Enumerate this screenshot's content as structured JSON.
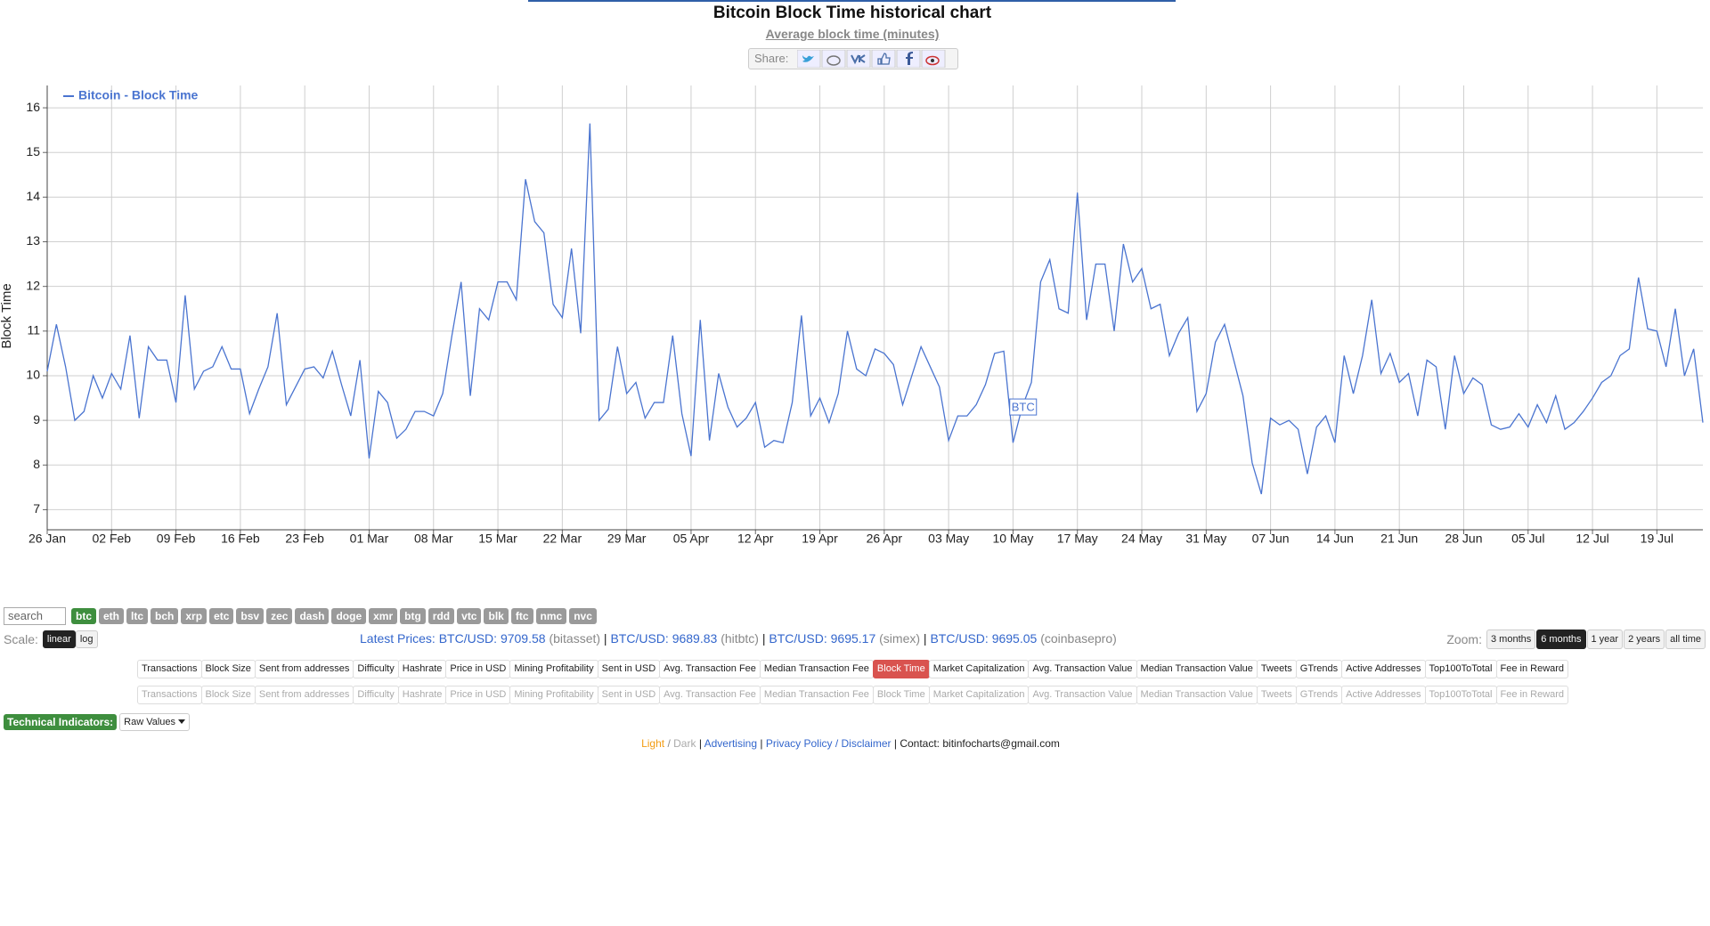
{
  "page": {
    "title": "Bitcoin Block Time historical chart",
    "subtitle": "Average block time (minutes)",
    "share_label": "Share:",
    "search_placeholder": "search",
    "coins": [
      "btc",
      "eth",
      "ltc",
      "bch",
      "xrp",
      "etc",
      "bsv",
      "zec",
      "dash",
      "doge",
      "xmr",
      "btg",
      "rdd",
      "vtc",
      "blk",
      "ftc",
      "nmc",
      "nvc"
    ],
    "scale_label": "Scale:",
    "scales": [
      "linear",
      "log"
    ],
    "latest_prices_label": "Latest Prices:",
    "separator": "|",
    "prices": [
      {
        "pair": "BTC/USD:",
        "price": "9709.58",
        "source": "(bitasset)"
      },
      {
        "pair": "BTC/USD:",
        "price": "9689.83",
        "source": "(hitbtc)"
      },
      {
        "pair": "BTC/USD:",
        "price": "9695.17",
        "source": "(simex)"
      },
      {
        "pair": "BTC/USD:",
        "price": "9695.05",
        "source": "(coinbasepro)"
      }
    ],
    "zoom_label": "Zoom:",
    "zooms": [
      "3 months",
      "6 months",
      "1 year",
      "2 years",
      "all time"
    ],
    "metrics": [
      "Transactions",
      "Block Size",
      "Sent from addresses",
      "Difficulty",
      "Hashrate",
      "Price in USD",
      "Mining Profitability",
      "Sent in USD",
      "Avg. Transaction Fee",
      "Median Transaction Fee",
      "Block Time",
      "Market Capitalization",
      "Avg. Transaction Value",
      "Median Transaction Value",
      "Tweets",
      "GTrends",
      "Active Addresses",
      "Top100ToTotal",
      "Fee in Reward"
    ],
    "selected": {
      "coin": "btc",
      "scale": "linear",
      "zoom": "6 months",
      "metric": "Block Time"
    },
    "technical_indicators_label": "Technical Indicators:",
    "raw_values": "Raw Values",
    "footer": {
      "light": "Light",
      "slash": "/",
      "dark": "Dark",
      "advertising": "Advertising",
      "privacy": "Privacy Policy / Disclaimer",
      "contact": "Contact: bitinfocharts@gmail.com"
    }
  },
  "chart_data": {
    "type": "line",
    "y_label": "Block Time",
    "x": [
      "26 Jan",
      "27 Jan",
      "28 Jan",
      "29 Jan",
      "30 Jan",
      "31 Jan",
      "01 Feb",
      "02 Feb",
      "03 Feb",
      "04 Feb",
      "05 Feb",
      "06 Feb",
      "07 Feb",
      "08 Feb",
      "09 Feb",
      "10 Feb",
      "11 Feb",
      "12 Feb",
      "13 Feb",
      "14 Feb",
      "15 Feb",
      "16 Feb",
      "17 Feb",
      "18 Feb",
      "19 Feb",
      "20 Feb",
      "21 Feb",
      "22 Feb",
      "23 Feb",
      "24 Feb",
      "25 Feb",
      "26 Feb",
      "27 Feb",
      "28 Feb",
      "29 Feb",
      "01 Mar",
      "02 Mar",
      "03 Mar",
      "04 Mar",
      "05 Mar",
      "06 Mar",
      "07 Mar",
      "08 Mar",
      "09 Mar",
      "10 Mar",
      "11 Mar",
      "12 Mar",
      "13 Mar",
      "14 Mar",
      "15 Mar",
      "16 Mar",
      "17 Mar",
      "18 Mar",
      "19 Mar",
      "20 Mar",
      "21 Mar",
      "22 Mar",
      "23 Mar",
      "24 Mar",
      "25 Mar",
      "26 Mar",
      "27 Mar",
      "28 Mar",
      "29 Mar",
      "30 Mar",
      "31 Mar",
      "01 Apr",
      "02 Apr",
      "03 Apr",
      "04 Apr",
      "05 Apr",
      "06 Apr",
      "07 Apr",
      "08 Apr",
      "09 Apr",
      "10 Apr",
      "11 Apr",
      "12 Apr",
      "13 Apr",
      "14 Apr",
      "15 Apr",
      "16 Apr",
      "17 Apr",
      "18 Apr",
      "19 Apr",
      "20 Apr",
      "21 Apr",
      "22 Apr",
      "23 Apr",
      "24 Apr",
      "25 Apr",
      "26 Apr",
      "27 Apr",
      "28 Apr",
      "29 Apr",
      "30 Apr",
      "01 May",
      "02 May",
      "03 May",
      "04 May",
      "05 May",
      "06 May",
      "07 May",
      "08 May",
      "09 May",
      "10 May",
      "11 May",
      "12 May",
      "13 May",
      "14 May",
      "15 May",
      "16 May",
      "17 May",
      "18 May",
      "19 May",
      "20 May",
      "21 May",
      "22 May",
      "23 May",
      "24 May",
      "25 May",
      "26 May",
      "27 May",
      "28 May",
      "29 May",
      "30 May",
      "31 May",
      "01 Jun",
      "02 Jun",
      "03 Jun",
      "04 Jun",
      "05 Jun",
      "06 Jun",
      "07 Jun",
      "08 Jun",
      "09 Jun",
      "10 Jun",
      "11 Jun",
      "12 Jun",
      "13 Jun",
      "14 Jun",
      "15 Jun",
      "16 Jun",
      "17 Jun",
      "18 Jun",
      "19 Jun",
      "20 Jun",
      "21 Jun",
      "22 Jun",
      "23 Jun",
      "24 Jun",
      "25 Jun",
      "26 Jun",
      "27 Jun",
      "28 Jun",
      "29 Jun",
      "30 Jun",
      "01 Jul",
      "02 Jul",
      "03 Jul",
      "04 Jul",
      "05 Jul",
      "06 Jul",
      "07 Jul",
      "08 Jul",
      "09 Jul",
      "10 Jul",
      "11 Jul",
      "12 Jul",
      "13 Jul",
      "14 Jul",
      "15 Jul",
      "16 Jul",
      "17 Jul",
      "18 Jul",
      "19 Jul",
      "20 Jul",
      "21 Jul",
      "22 Jul",
      "23 Jul",
      "24 Jul"
    ],
    "series": [
      {
        "name": "Bitcoin - Block Time",
        "color": "#4a74d0",
        "values": [
          10.1,
          11.15,
          10.2,
          9.0,
          9.2,
          10.0,
          9.5,
          10.05,
          9.7,
          10.9,
          9.05,
          10.65,
          10.35,
          10.35,
          9.4,
          11.8,
          9.7,
          10.1,
          10.2,
          10.65,
          10.15,
          10.15,
          9.15,
          9.7,
          10.2,
          11.4,
          9.35,
          9.75,
          10.15,
          10.2,
          9.95,
          10.55,
          9.8,
          9.1,
          10.35,
          8.15,
          9.65,
          9.4,
          8.6,
          8.8,
          9.2,
          9.2,
          9.1,
          9.6,
          10.9,
          12.1,
          9.55,
          11.5,
          11.25,
          12.1,
          12.1,
          11.7,
          14.4,
          13.45,
          13.2,
          11.6,
          11.3,
          12.85,
          10.95,
          15.65,
          9.0,
          9.25,
          10.65,
          9.6,
          9.85,
          9.05,
          9.4,
          9.4,
          10.9,
          9.15,
          8.2,
          11.25,
          8.55,
          10.05,
          9.3,
          8.85,
          9.05,
          9.4,
          8.4,
          8.55,
          8.5,
          9.4,
          11.35,
          9.1,
          9.5,
          8.95,
          9.6,
          11.0,
          10.15,
          10.0,
          10.6,
          10.5,
          10.25,
          9.35,
          10.0,
          10.65,
          10.2,
          9.75,
          8.55,
          9.1,
          9.1,
          9.35,
          9.8,
          10.5,
          10.55,
          8.5,
          9.3,
          9.85,
          12.1,
          12.6,
          11.5,
          11.4,
          14.1,
          11.25,
          12.5,
          12.5,
          11.0,
          12.95,
          12.1,
          12.4,
          11.5,
          11.6,
          10.45,
          10.95,
          11.3,
          9.2,
          9.6,
          10.75,
          11.15,
          10.35,
          9.55,
          8.05,
          7.35,
          9.05,
          8.9,
          9.0,
          8.8,
          7.8,
          8.85,
          9.1,
          8.5,
          10.45,
          9.6,
          10.45,
          11.7,
          10.05,
          10.5,
          9.85,
          10.05,
          9.1,
          10.35,
          10.2,
          8.8,
          10.45,
          9.6,
          9.95,
          9.8,
          8.9,
          8.8,
          8.85,
          9.15,
          8.85,
          9.35,
          8.95,
          9.55,
          8.8,
          8.95,
          9.2,
          9.5,
          9.85,
          10.0,
          10.45,
          10.6,
          12.2,
          11.05,
          11.0,
          10.2,
          11.5,
          10.0,
          10.6,
          8.95
        ]
      }
    ],
    "ylim": [
      6.55,
      16.5
    ],
    "yticks": [
      7,
      8,
      9,
      10,
      11,
      12,
      13,
      14,
      15,
      16
    ],
    "xticks": [
      "26 Jan",
      "02 Feb",
      "09 Feb",
      "16 Feb",
      "23 Feb",
      "01 Mar",
      "08 Mar",
      "15 Mar",
      "22 Mar",
      "29 Mar",
      "05 Apr",
      "12 Apr",
      "19 Apr",
      "26 Apr",
      "03 May",
      "10 May",
      "17 May",
      "24 May",
      "31 May",
      "07 Jun",
      "14 Jun",
      "21 Jun",
      "28 Jun",
      "05 Jul",
      "12 Jul",
      "19 Jul"
    ],
    "grid": true,
    "legend": "top-left",
    "flags": [
      {
        "x": "11 May",
        "text": "BTC"
      }
    ]
  }
}
